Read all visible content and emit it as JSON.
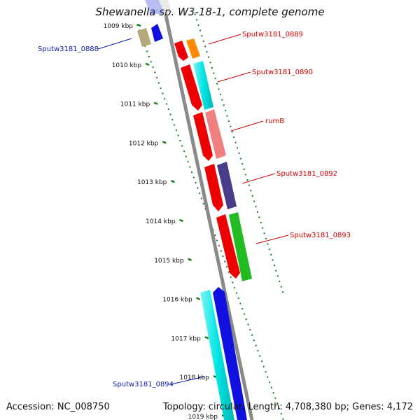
{
  "title": "Shewanella sp. W3-18-1, complete genome",
  "footer": {
    "accession": "Accession: NC_008750",
    "topology": "Topology: circular; Length: 4,708,380 bp; Genes: 4,172"
  },
  "colors": {
    "backbone": "#8a8a8a",
    "tick": "#1a7a1a",
    "forward_label": "#0a1aa8",
    "reverse_label": "#d40000"
  },
  "scale": {
    "labels": [
      "1009 kbp",
      "1010 kbp",
      "1011 kbp",
      "1012 kbp",
      "1013 kbp",
      "1014 kbp",
      "1015 kbp",
      "1016 kbp",
      "1017 kbp",
      "1018 kbp",
      "1019 kbp"
    ]
  },
  "genes": [
    {
      "label": "Sputw3181_0888",
      "strand": "forward",
      "color": "#b3a97a",
      "pair_color": "#1010e0"
    },
    {
      "label": "Sputw3181_0889",
      "strand": "reverse",
      "color": "#ff8c00",
      "pair_color": "#ee0000"
    },
    {
      "label": "Sputw3181_0890",
      "strand": "reverse",
      "color": "#00e5e5",
      "pair_color": "#ee0000"
    },
    {
      "label": "rumB",
      "strand": "reverse",
      "color": "#f08080",
      "pair_color": "#ee0000"
    },
    {
      "label": "Sputw3181_0892",
      "strand": "reverse",
      "color": "#483d8b",
      "pair_color": "#ee0000"
    },
    {
      "label": "Sputw3181_0893",
      "strand": "reverse",
      "color": "#22bb22",
      "pair_color": "#ee0000"
    },
    {
      "label": "Sputw3181_0894",
      "strand": "forward",
      "color": "#00e5e5",
      "pair_color": "#1010e0"
    }
  ]
}
